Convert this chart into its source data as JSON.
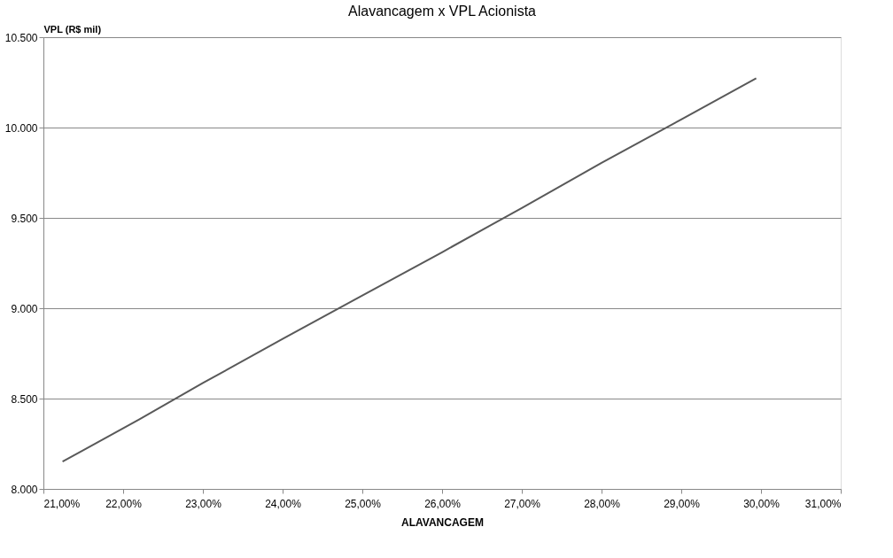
{
  "chart_data": {
    "type": "line",
    "title": "Alavancagem    x  VPL Acionista",
    "xlabel": "ALAVANCAGEM",
    "ylabel": "VPL (R$ mil)",
    "x": [
      21.24,
      22.2,
      23.0,
      24.0,
      25.0,
      26.0,
      27.0,
      27.5,
      28.0,
      29.0,
      29.94
    ],
    "series": [
      {
        "color": "#595959",
        "values": [
          8151,
          8384,
          8586,
          8830,
          9070,
          9310,
          9555,
          9680,
          9805,
          10045,
          10273
        ]
      }
    ],
    "xlim": [
      21,
      31
    ],
    "xticks": [
      {
        "value": 21,
        "label": "21,00%"
      },
      {
        "value": 22,
        "label": "22,00%"
      },
      {
        "value": 23,
        "label": "23,00%"
      },
      {
        "value": 24,
        "label": "24,00%"
      },
      {
        "value": 25,
        "label": "25,00%"
      },
      {
        "value": 26,
        "label": "26,00%"
      },
      {
        "value": 27,
        "label": "27,00%"
      },
      {
        "value": 28,
        "label": "28,00%"
      },
      {
        "value": 29,
        "label": "29,00%"
      },
      {
        "value": 30,
        "label": "30,00%"
      },
      {
        "value": 31,
        "label": "31,00%"
      }
    ],
    "ylim": [
      8000,
      10500
    ],
    "yticks": [
      {
        "value": 8000,
        "label": "8.000"
      },
      {
        "value": 8500,
        "label": "8.500"
      },
      {
        "value": 9000,
        "label": "9.000"
      },
      {
        "value": 9500,
        "label": "9.500"
      },
      {
        "value": 10000,
        "label": "10.000"
      },
      {
        "value": 10500,
        "label": "10.500"
      }
    ],
    "grid": "y",
    "legend": false,
    "marker": "none",
    "line_style": "solid"
  }
}
